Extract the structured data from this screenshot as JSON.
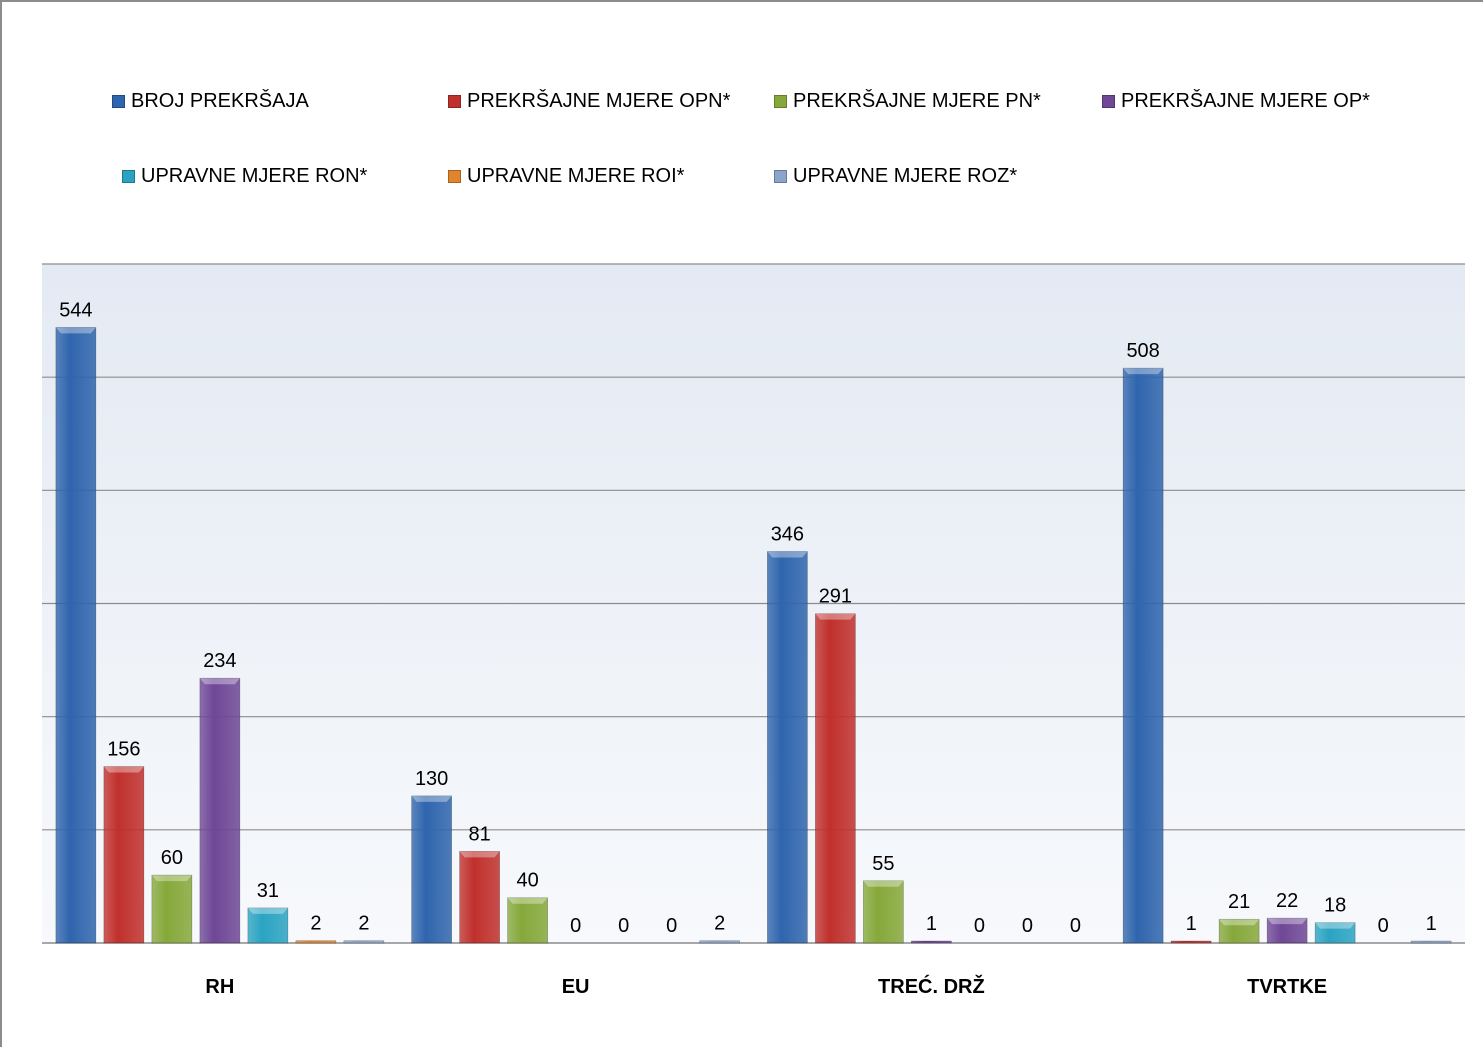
{
  "chart_data": {
    "type": "bar",
    "title": "",
    "xlabel": "",
    "ylabel": "",
    "categories": [
      "RH",
      "EU",
      "TREĆ. DRŽ",
      "TVRTKE"
    ],
    "ylim": [
      0,
      600
    ],
    "ytick_step": 100,
    "grid": true,
    "legend_position": "top",
    "series": [
      {
        "name": "BROJ PREKRŠAJA",
        "color": "#2f65ad",
        "values": [
          544,
          130,
          346,
          508
        ]
      },
      {
        "name": "PREKRŠAJNE MJERE OPN*",
        "color": "#c0302c",
        "values": [
          156,
          81,
          291,
          1
        ]
      },
      {
        "name": "PREKRŠAJNE MJERE PN*",
        "color": "#86a83a",
        "values": [
          60,
          40,
          55,
          21
        ]
      },
      {
        "name": "PREKRŠAJNE MJERE OP*",
        "color": "#6f4796",
        "values": [
          234,
          0,
          1,
          22
        ]
      },
      {
        "name": "UPRAVNE MJERE RON*",
        "color": "#2aa3c2",
        "values": [
          31,
          0,
          0,
          18
        ]
      },
      {
        "name": "UPRAVNE MJERE ROI*",
        "color": "#e0852b",
        "values": [
          2,
          0,
          0,
          0
        ]
      },
      {
        "name": "UPRAVNE MJERE ROZ*",
        "color": "#8aa4cc",
        "values": [
          2,
          2,
          0,
          1
        ]
      }
    ]
  }
}
